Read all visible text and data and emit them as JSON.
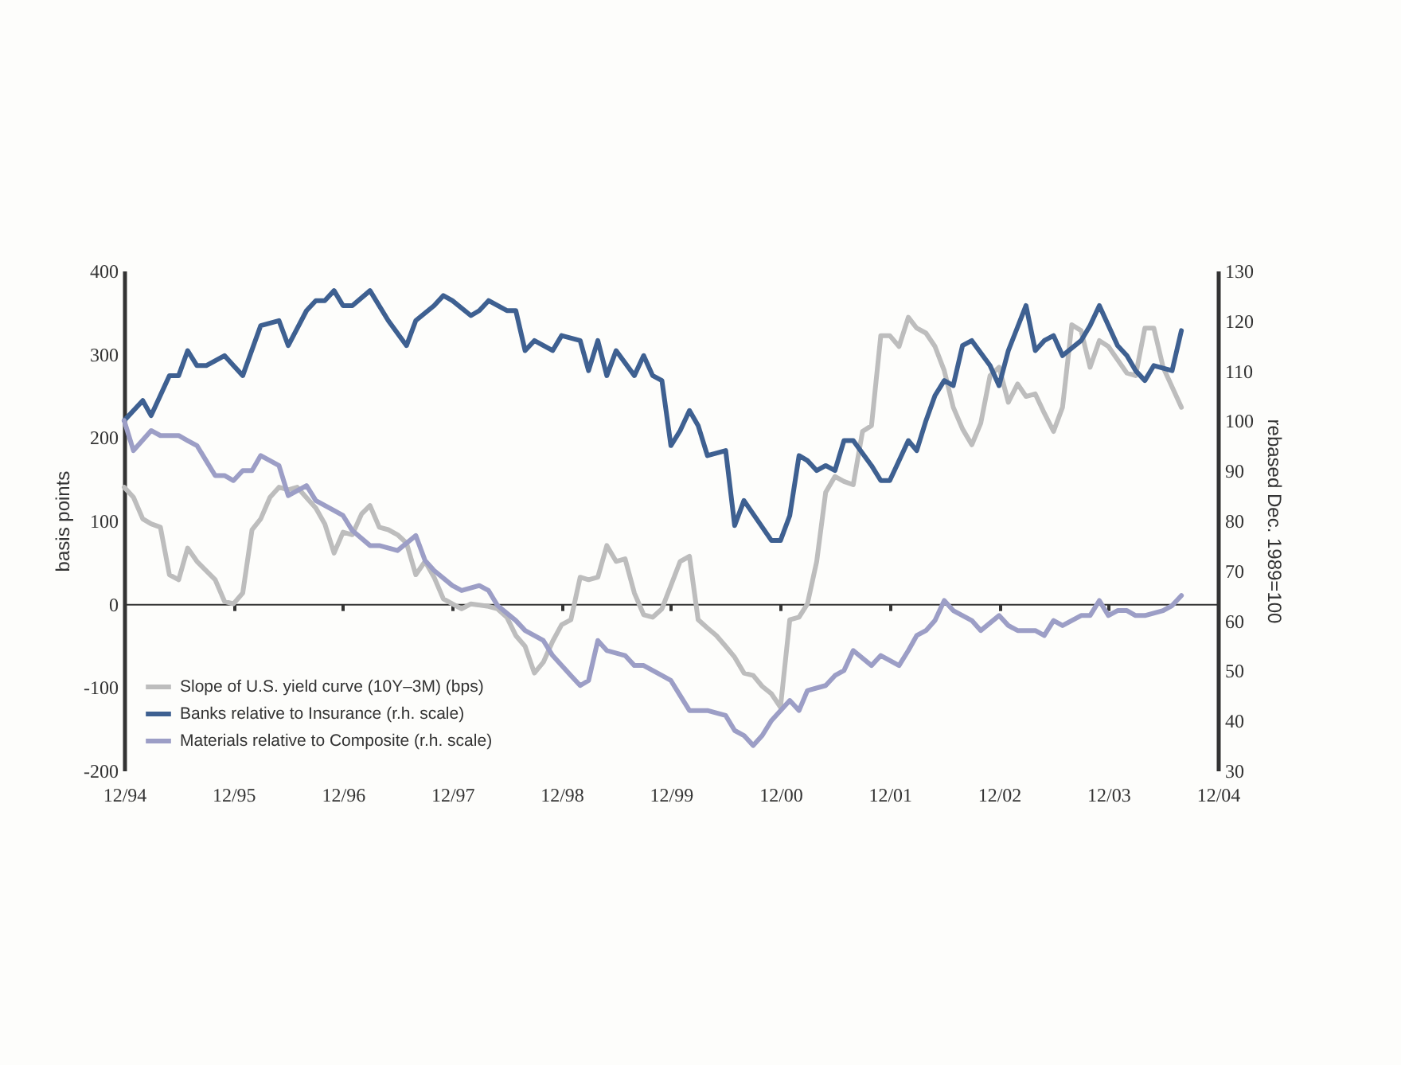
{
  "chart_data": {
    "type": "line",
    "ylabel": "basis points",
    "y2label": "rebased Dec. 1989=100",
    "xlim": [
      "1994-12",
      "2004-12"
    ],
    "xticks": [
      {
        "value": "1994-12",
        "label": "12/94"
      },
      {
        "value": "1995-12",
        "label": "12/95"
      },
      {
        "value": "1996-12",
        "label": "12/96"
      },
      {
        "value": "1997-12",
        "label": "12/97"
      },
      {
        "value": "1998-12",
        "label": "12/98"
      },
      {
        "value": "1999-12",
        "label": "12/99"
      },
      {
        "value": "2000-12",
        "label": "12/00"
      },
      {
        "value": "2001-12",
        "label": "12/01"
      },
      {
        "value": "2002-12",
        "label": "12/02"
      },
      {
        "value": "2003-12",
        "label": "12/03"
      },
      {
        "value": "2004-12",
        "label": "12/04"
      }
    ],
    "ylim": [
      -200,
      400
    ],
    "yticks": [
      -200,
      -100,
      0,
      100,
      200,
      300,
      400
    ],
    "y2lim": [
      30,
      130
    ],
    "y2ticks": [
      30,
      40,
      50,
      60,
      70,
      80,
      90,
      100,
      110,
      120,
      130
    ],
    "legend": "bottom left",
    "line_style": "solid",
    "series": [
      {
        "name": "Slope of U.S. yield curve (10Y–3M) (bps)",
        "color": "#bdbdbd",
        "x": [
          "1994-12",
          "1995-01",
          "1995-02",
          "1995-03",
          "1995-04",
          "1995-05",
          "1995-06",
          "1995-07",
          "1995-08",
          "1995-10",
          "1995-11",
          "1995-12",
          "1996-01",
          "1996-02",
          "1996-03",
          "1996-04",
          "1996-05",
          "1996-06",
          "1996-07",
          "1996-09",
          "1996-10",
          "1996-11",
          "1996-12",
          "1997-01",
          "1997-02",
          "1997-03",
          "1997-04",
          "1997-05",
          "1997-06",
          "1997-07",
          "1997-08",
          "1997-09",
          "1997-10",
          "1997-11",
          "1997-12",
          "1998-01",
          "1998-02",
          "1998-04",
          "1998-05",
          "1998-06",
          "1998-07",
          "1998-08",
          "1998-09",
          "1998-10",
          "1998-11",
          "1998-12",
          "1999-01",
          "1999-02",
          "1999-03",
          "1999-04",
          "1999-05",
          "1999-06",
          "1999-07",
          "1999-08",
          "1999-09",
          "1999-10",
          "1999-11",
          "1999-12",
          "2000-01",
          "2000-02",
          "2000-03",
          "2000-04",
          "2000-05",
          "2000-06",
          "2000-07",
          "2000-08",
          "2000-09",
          "2000-10",
          "2000-11",
          "2000-12",
          "2001-01",
          "2001-02",
          "2001-03",
          "2001-04",
          "2001-05",
          "2001-06",
          "2001-07",
          "2001-08",
          "2001-09",
          "2001-10",
          "2001-11",
          "2001-12",
          "2002-01",
          "2002-02",
          "2002-03",
          "2002-04",
          "2002-05",
          "2002-06",
          "2002-07",
          "2002-08",
          "2002-09",
          "2002-10",
          "2002-11",
          "2002-12",
          "2003-01",
          "2003-02",
          "2003-03",
          "2003-04",
          "2003-05",
          "2003-06",
          "2003-07",
          "2003-08",
          "2003-09",
          "2003-10",
          "2003-11",
          "2003-12",
          "2004-01",
          "2004-02",
          "2004-03",
          "2004-04",
          "2004-05",
          "2004-06",
          "2004-08"
        ],
        "values": [
          140,
          128,
          102,
          96,
          92,
          35,
          29,
          67,
          51,
          29,
          3,
          0,
          13,
          89,
          102,
          128,
          140,
          137,
          140,
          115,
          96,
          61,
          86,
          83,
          108,
          118,
          92,
          89,
          83,
          73,
          35,
          51,
          32,
          6,
          0,
          -6,
          0,
          -3,
          -6,
          -16,
          -38,
          -51,
          -83,
          -70,
          -45,
          -25,
          -19,
          32,
          29,
          32,
          70,
          51,
          54,
          13,
          -13,
          -16,
          -6,
          22,
          51,
          57,
          -19,
          -29,
          -38,
          -51,
          -64,
          -83,
          -86,
          -99,
          -108,
          -124,
          -19,
          -16,
          0,
          51,
          134,
          153,
          147,
          143,
          207,
          214,
          322,
          322,
          309,
          344,
          331,
          325,
          309,
          280,
          236,
          210,
          191,
          217,
          274,
          284,
          242,
          264,
          249,
          252,
          229,
          207,
          236,
          335,
          328,
          284,
          316,
          309,
          293,
          277,
          274,
          331,
          331,
          284,
          236
        ]
      },
      {
        "name": "Banks relative to Insurance (r.h. scale)",
        "color": "#3e6091",
        "axis": "y2",
        "x": [
          "1994-12",
          "1995-02",
          "1995-03",
          "1995-05",
          "1995-06",
          "1995-07",
          "1995-08",
          "1995-09",
          "1995-11",
          "1995-12",
          "1996-01",
          "1996-03",
          "1996-05",
          "1996-06",
          "1996-08",
          "1996-09",
          "1996-10",
          "1996-11",
          "1996-12",
          "1997-01",
          "1997-03",
          "1997-05",
          "1997-07",
          "1997-08",
          "1997-10",
          "1997-11",
          "1997-12",
          "1998-02",
          "1998-03",
          "1998-04",
          "1998-06",
          "1998-07",
          "1998-08",
          "1998-09",
          "1998-11",
          "1998-12",
          "1999-02",
          "1999-03",
          "1999-04",
          "1999-05",
          "1999-06",
          "1999-08",
          "1999-09",
          "1999-10",
          "1999-11",
          "1999-12",
          "2000-01",
          "2000-02",
          "2000-03",
          "2000-04",
          "2000-06",
          "2000-07",
          "2000-08",
          "2000-11",
          "2000-12",
          "2001-01",
          "2001-02",
          "2001-03",
          "2001-04",
          "2001-05",
          "2001-06",
          "2001-07",
          "2001-08",
          "2001-10",
          "2001-11",
          "2001-12",
          "2002-01",
          "2002-02",
          "2002-03",
          "2002-04",
          "2002-05",
          "2002-06",
          "2002-07",
          "2002-08",
          "2002-09",
          "2002-11",
          "2002-12",
          "2003-01",
          "2003-03",
          "2003-04",
          "2003-05",
          "2003-06",
          "2003-07",
          "2003-09",
          "2003-10",
          "2003-11",
          "2004-01",
          "2004-02",
          "2004-03",
          "2004-04",
          "2004-05",
          "2004-07",
          "2004-08"
        ],
        "values": [
          100,
          104,
          101,
          109,
          109,
          114,
          111,
          111,
          113,
          111,
          109,
          119,
          120,
          115,
          122,
          124,
          124,
          126,
          123,
          123,
          126,
          120,
          115,
          120,
          123,
          125,
          124,
          121,
          122,
          124,
          122,
          122,
          114,
          116,
          114,
          117,
          116,
          110,
          116,
          109,
          114,
          109,
          113,
          109,
          108,
          95,
          98,
          102,
          99,
          93,
          94,
          79,
          84,
          76,
          76,
          81,
          93,
          92,
          90,
          91,
          90,
          96,
          96,
          91,
          88,
          88,
          92,
          96,
          94,
          100,
          105,
          108,
          107,
          115,
          116,
          111,
          107,
          114,
          123,
          114,
          116,
          117,
          113,
          116,
          119,
          123,
          115,
          113,
          110,
          108,
          111,
          110,
          118
        ]
      },
      {
        "name": "Materials relative to Composite (r.h. scale)",
        "color": "#9c9ec6",
        "axis": "y2",
        "x": [
          "1994-12",
          "1995-01",
          "1995-03",
          "1995-04",
          "1995-06",
          "1995-07",
          "1995-08",
          "1995-10",
          "1995-11",
          "1995-12",
          "1996-01",
          "1996-02",
          "1996-03",
          "1996-05",
          "1996-06",
          "1996-08",
          "1996-09",
          "1996-11",
          "1996-12",
          "1997-01",
          "1997-03",
          "1997-04",
          "1997-06",
          "1997-08",
          "1997-09",
          "1997-10",
          "1997-12",
          "1998-01",
          "1998-03",
          "1998-04",
          "1998-05",
          "1998-07",
          "1998-08",
          "1998-10",
          "1998-11",
          "1999-01",
          "1999-02",
          "1999-03",
          "1999-04",
          "1999-05",
          "1999-07",
          "1999-08",
          "1999-09",
          "1999-11",
          "1999-12",
          "2000-01",
          "2000-02",
          "2000-04",
          "2000-06",
          "2000-07",
          "2000-08",
          "2000-09",
          "2000-10",
          "2000-11",
          "2001-01",
          "2001-02",
          "2001-03",
          "2001-05",
          "2001-06",
          "2001-07",
          "2001-08",
          "2001-10",
          "2001-11",
          "2002-01",
          "2002-02",
          "2002-03",
          "2002-04",
          "2002-05",
          "2002-06",
          "2002-07",
          "2002-09",
          "2002-10",
          "2002-12",
          "2003-01",
          "2003-02",
          "2003-04",
          "2003-05",
          "2003-06",
          "2003-07",
          "2003-09",
          "2003-10",
          "2003-11",
          "2003-12",
          "2004-01",
          "2004-02",
          "2004-03",
          "2004-04",
          "2004-06",
          "2004-07",
          "2004-08"
        ],
        "values": [
          100,
          94,
          98,
          97,
          97,
          96,
          95,
          89,
          89,
          88,
          90,
          90,
          93,
          91,
          85,
          87,
          84,
          82,
          81,
          78,
          75,
          75,
          74,
          77,
          72,
          70,
          67,
          66,
          67,
          66,
          63,
          60,
          58,
          56,
          53,
          49,
          47,
          48,
          56,
          54,
          53,
          51,
          51,
          49,
          48,
          45,
          42,
          42,
          41,
          38,
          37,
          35,
          37,
          40,
          44,
          42,
          46,
          47,
          49,
          50,
          54,
          51,
          53,
          51,
          54,
          57,
          58,
          60,
          64,
          62,
          60,
          58,
          61,
          59,
          58,
          58,
          57,
          60,
          59,
          61,
          61,
          64,
          61,
          62,
          62,
          61,
          61,
          62,
          63,
          65
        ]
      }
    ]
  }
}
